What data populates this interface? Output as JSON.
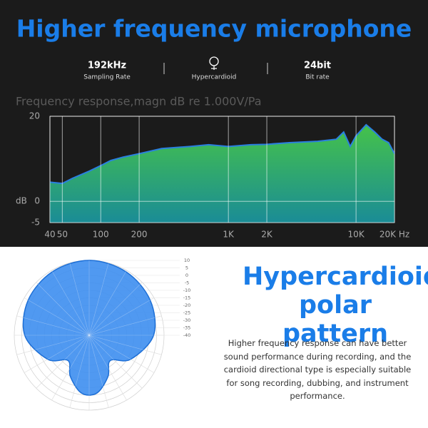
{
  "header": {
    "title": "Higher frequency microphone",
    "specs": [
      {
        "value": "192kHz",
        "label": "Sampling Rate"
      },
      {
        "label": "Hypercardioid"
      },
      {
        "value": "24bit",
        "label": "Bit rate"
      }
    ]
  },
  "chart_data": [
    {
      "type": "area",
      "title": "Frequency response,magn dB re 1.000V/Pa",
      "y_label": "dB",
      "x": [
        40,
        50,
        60,
        80,
        100,
        120,
        150,
        200,
        300,
        500,
        700,
        1000,
        1500,
        2000,
        3000,
        5000,
        7000,
        8000,
        9000,
        10000,
        12000,
        14000,
        16000,
        18000,
        20000
      ],
      "values": [
        4.5,
        4.2,
        5.4,
        7,
        8.4,
        9.6,
        10.4,
        11.2,
        12.4,
        12.9,
        13.3,
        12.9,
        13.3,
        13.4,
        13.8,
        14.1,
        14.6,
        16.3,
        12.9,
        15.4,
        18,
        16.3,
        14.6,
        13.8,
        11.2
      ],
      "x_log": true,
      "xlim": [
        40,
        20000
      ],
      "xticks": [
        40,
        50,
        100,
        200,
        {
          "value": 1000,
          "label": "1K"
        },
        {
          "value": 2000,
          "label": "2K"
        },
        {
          "value": 10000,
          "label": "10K"
        },
        {
          "value": 20000,
          "label": "20K Hz"
        }
      ],
      "ylim": [
        -5,
        20
      ],
      "yticks": [
        -5,
        0,
        20
      ],
      "grid": true,
      "color": "#2f9e5a",
      "line_color": "#2a7fe0"
    },
    {
      "type": "polar",
      "angles": [
        0,
        30,
        60,
        90,
        120,
        140,
        155,
        170,
        180,
        190,
        205,
        220,
        240,
        270,
        300,
        330
      ],
      "values": [
        10,
        9,
        7,
        3,
        -8,
        -18,
        -10,
        -2,
        0,
        -2,
        -10,
        -18,
        -8,
        3,
        7,
        9
      ],
      "rlim": [
        -40,
        10
      ],
      "rticks": [
        10,
        5,
        0,
        -5,
        -10,
        -15,
        -20,
        -25,
        -30,
        -35,
        -40
      ],
      "color": "#3d8ef0",
      "grid": true
    }
  ],
  "section": {
    "title": "Hypercardioid polar pattern",
    "description": "Higher frequency response can have better sound performance during recording, and the cardioid directional type is especially suitable for song recording, dubbing, and instrument performance."
  }
}
